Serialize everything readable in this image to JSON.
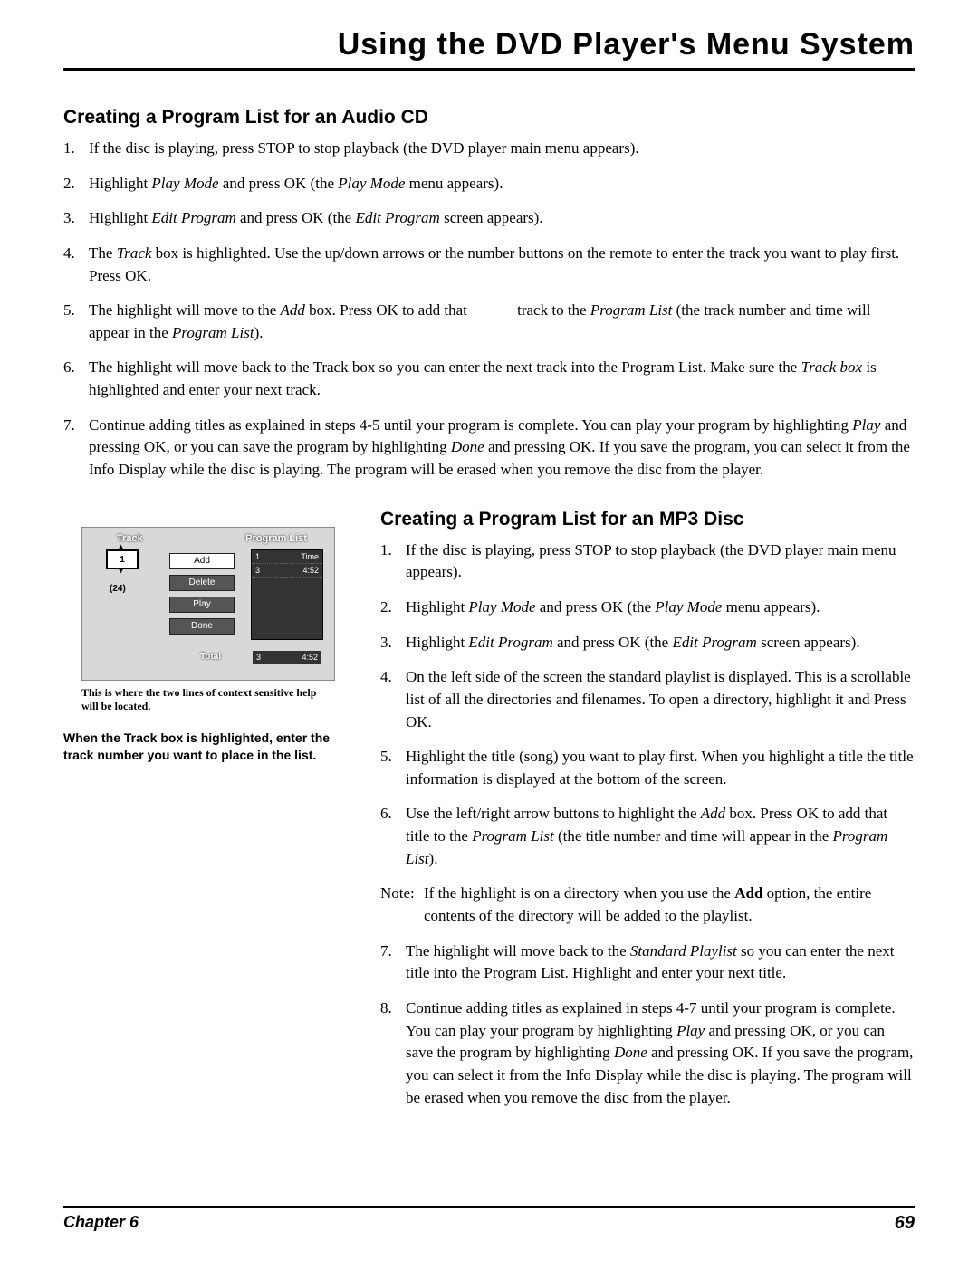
{
  "page_title": "Using the DVD Player's Menu System",
  "section1": {
    "heading": "Creating a Program List for an Audio CD",
    "items": [
      {
        "n": "1.",
        "text": "If the disc is playing, press STOP to stop playback (the DVD player main menu appears)."
      },
      {
        "n": "2.",
        "text": "Highlight <em class='i'>Play Mode</em> and press OK (the <em class='i'>Play Mode</em> menu appears)."
      },
      {
        "n": "3.",
        "text": "Highlight <em class='i'>Edit Program</em> and press OK (the <em class='i'>Edit Program</em> screen appears)."
      },
      {
        "n": "4.",
        "text": "The <em class='i'>Track</em> box is highlighted. Use the up/down arrows or the number buttons on the remote to enter the track you want to play first. Press OK."
      },
      {
        "n": "5.",
        "text": "The highlight will move to the <em class='i'>Add</em> box. Press OK to add that&nbsp;&nbsp;&nbsp;&nbsp;&nbsp;&nbsp;&nbsp;&nbsp;&nbsp;&nbsp;&nbsp;&nbsp;&nbsp;track to the <em class='i'>Program List</em> (the track number and time will appear in the <em class='i'>Program List</em>)."
      },
      {
        "n": "6.",
        "text": "The highlight will move back to the Track box so you can enter the next track into the Program List. Make sure the <em class='i'>Track box</em> is highlighted and enter your next track."
      },
      {
        "n": "7.",
        "text": "Continue adding titles as explained in steps 4-5 until your program is complete. You can play your program by highlighting <em class='i'>Play</em> and pressing OK, or you can save the program by highlighting <em class='i'>Done</em> and pressing OK. If you save the program, you can select it from the Info Display while the disc is playing. The program will be erased when you remove the disc from the player."
      }
    ]
  },
  "figure": {
    "track_label": "Track",
    "proglist_label": "Program List",
    "track_value": "1",
    "track_total": "(24)",
    "buttons": {
      "add": "Add",
      "delete": "Delete",
      "play": "Play",
      "done": "Done"
    },
    "proglist_rows": [
      {
        "n": "1",
        "t": "Time"
      },
      {
        "n": "3",
        "t": "4:52"
      }
    ],
    "total_label": "Total",
    "total_n": "3",
    "total_t": "4:52",
    "help_text": "This is where the two lines of context sensitive help will be located.",
    "caption": "When the Track box is highlighted, enter the track number you want to place in the list."
  },
  "section2": {
    "heading": "Creating a Program List for an MP3 Disc",
    "items": [
      {
        "n": "1.",
        "text": "If the disc is playing, press STOP to stop playback (the DVD player main menu appears)."
      },
      {
        "n": "2.",
        "text": "Highlight <em class='i'>Play Mode</em> and press OK (the <em class='i'>Play Mode</em> menu appears)."
      },
      {
        "n": "3.",
        "text": "Highlight <em class='i'>Edit Program</em> and press OK (the <em class='i'>Edit Program</em> screen appears)."
      },
      {
        "n": "4.",
        "text": "On the left side of the screen the standard playlist is displayed. This is a scrollable list of all the directories and filenames. To open a directory, highlight it and Press OK."
      },
      {
        "n": "5.",
        "text": "Highlight the title (song) you want to play first. When you highlight a title the title information is displayed at the bottom of the screen."
      },
      {
        "n": "6.",
        "text": "Use the left/right arrow buttons to highlight the <em class='i'>Add</em> box. Press OK to add that title to the <em class='i'>Program List</em> (the title number and time will appear in the <em class='i'>Program List</em>)."
      }
    ],
    "note": {
      "label": "Note:",
      "text": "If the highlight is on a directory when you use the <strong class='b'>Add</strong> option, the entire contents of the directory will be added to the playlist."
    },
    "items2": [
      {
        "n": "7.",
        "text": "The highlight will move back to the <em class='i'>Standard Playlist</em> so you can enter the next title into the Program List. Highlight and enter your next title."
      },
      {
        "n": "8.",
        "text": "Continue adding titles as explained in steps 4-7 until your program is complete. You can play your program by highlighting <em class='i'>Play</em> and pressing OK, or you can save the program by highlighting <em class='i'>Done</em> and pressing OK. If you save the program, you can select it from the Info Display while the disc is playing. The program will be erased when you remove the disc from the player."
      }
    ]
  },
  "footer": {
    "chapter": "Chapter 6",
    "page": "69"
  },
  "colors": {
    "text": "#000000",
    "bg": "#ffffff",
    "ui_bg": "#d8d8d8",
    "ui_dark": "#333333"
  }
}
